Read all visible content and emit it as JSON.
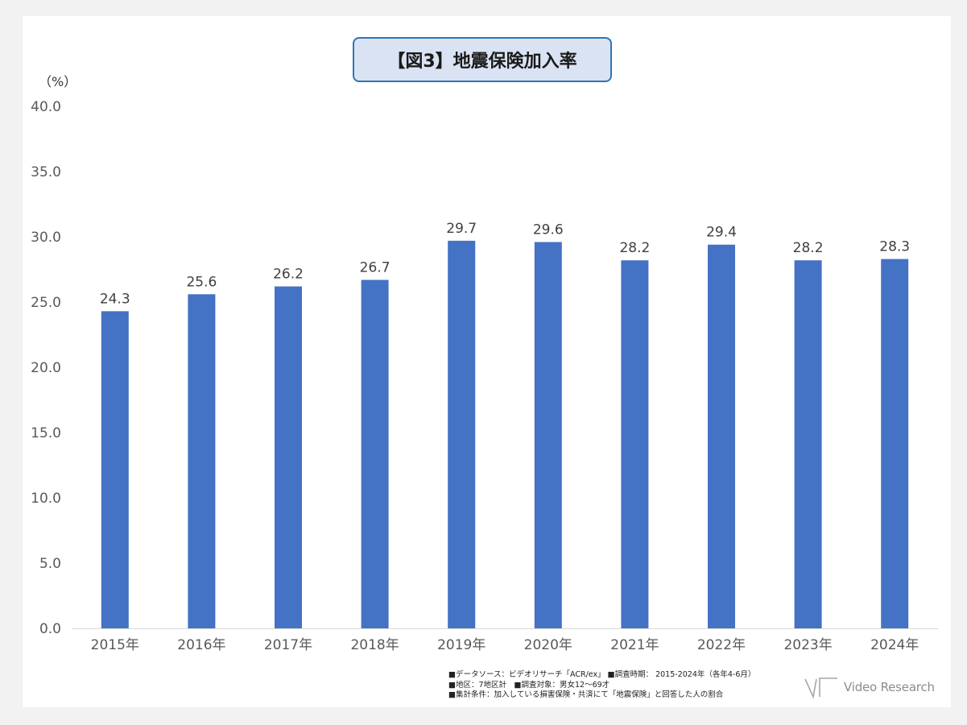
{
  "unit_label": "（%）",
  "chart_data": {
    "type": "bar",
    "title": "【図3】地震保険加入率",
    "categories": [
      "2015年",
      "2016年",
      "2017年",
      "2018年",
      "2019年",
      "2020年",
      "2021年",
      "2022年",
      "2023年",
      "2024年"
    ],
    "values": [
      24.3,
      25.6,
      26.2,
      26.7,
      29.7,
      29.6,
      28.2,
      29.4,
      28.2,
      28.3
    ],
    "value_labels": [
      "24.3",
      "25.6",
      "26.2",
      "26.7",
      "29.7",
      "29.6",
      "28.2",
      "29.4",
      "28.2",
      "28.3"
    ],
    "ylim": [
      0,
      40
    ],
    "yticks": [
      "0.0",
      "5.0",
      "10.0",
      "15.0",
      "20.0",
      "25.0",
      "30.0",
      "35.0",
      "40.0"
    ],
    "ytick_values": [
      0,
      5,
      10,
      15,
      20,
      25,
      30,
      35,
      40
    ],
    "grid": false,
    "colors": {
      "bar": "#4472c4",
      "axis": "#d9d9d9"
    }
  },
  "footnotes": [
    "■データソース：ビデオリサーチ「ACR/ex」 ■調査時期： 2015-2024年（各年4-6月）",
    "■地区：7地区計　■調査対象：男女12～69才",
    "■集計条件：加入している損害保険・共済にて「地震保険」と回答した人の割合"
  ],
  "logo": {
    "text": "Video Research",
    "icon": "videoresearch-logo-icon"
  }
}
